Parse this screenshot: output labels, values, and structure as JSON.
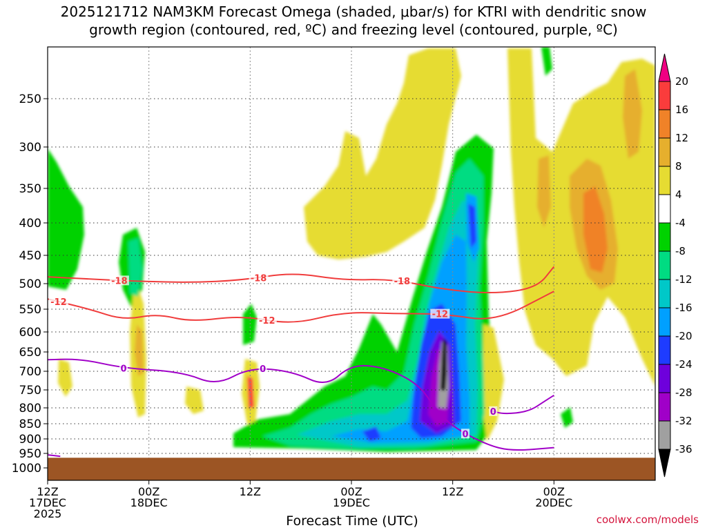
{
  "title_line1": "2025121712 NAM3KM Forecast Omega (shaded, μbar/s) for KTRI with dendritic snow",
  "title_line2": "growth region (contoured, red, ºC) and freezing level (contoured, purple, ºC)",
  "credit": "coolwx.com/models",
  "chart_data": {
    "type": "heatmap",
    "title": "2025121712 NAM3KM Forecast Omega (shaded, μbar/s) for KTRI with dendritic snow growth region (contoured, red, ºC) and freezing level (contoured, purple, ºC)",
    "xlabel": "Forecast Time (UTC)",
    "ylabel": "",
    "x_range_hours": [
      0,
      72
    ],
    "y_range_hpa": [
      1050,
      200
    ],
    "x_ticks": [
      {
        "hour": 0,
        "lines": [
          "12Z",
          "17DEC",
          "2025"
        ]
      },
      {
        "hour": 12,
        "lines": [
          "00Z",
          "18DEC"
        ]
      },
      {
        "hour": 24,
        "lines": [
          "12Z"
        ]
      },
      {
        "hour": 36,
        "lines": [
          "00Z",
          "19DEC"
        ]
      },
      {
        "hour": 48,
        "lines": [
          "12Z"
        ]
      },
      {
        "hour": 60,
        "lines": [
          "00Z",
          "20DEC"
        ]
      }
    ],
    "y_ticks": [
      "250",
      "300",
      "350",
      "400",
      "450",
      "500",
      "550",
      "600",
      "650",
      "700",
      "750",
      "800",
      "850",
      "900",
      "950",
      "1000"
    ],
    "colorbar": {
      "labels": [
        "20",
        "16",
        "12",
        "8",
        "4",
        "-4",
        "-8",
        "-12",
        "-16",
        "-20",
        "-24",
        "-28",
        "-32",
        "-36"
      ],
      "levels": [
        -40,
        -36,
        -32,
        -28,
        -24,
        -20,
        -16,
        -12,
        -8,
        -4,
        4,
        8,
        12,
        16,
        20,
        24
      ],
      "colors": [
        "#000000",
        "#a0a0a0",
        "#a000c8",
        "#6e00dc",
        "#1e3cff",
        "#00a0ff",
        "#00c8c8",
        "#00dc82",
        "#00d200",
        "#ffffff",
        "#e6dc32",
        "#e6af2d",
        "#f08228",
        "#fa3c3c",
        "#f00082"
      ]
    },
    "ground": {
      "color": "#9c5524",
      "top_hpa": 965
    },
    "contours": [
      {
        "name": "dgz-top",
        "label": "-18",
        "color": "#f03c3c",
        "points": [
          [
            0,
            488
          ],
          [
            5,
            492
          ],
          [
            11,
            496
          ],
          [
            17,
            498
          ],
          [
            23,
            494
          ],
          [
            29,
            480
          ],
          [
            35,
            494
          ],
          [
            41,
            492
          ],
          [
            47,
            512
          ],
          [
            53,
            520
          ],
          [
            58,
            508
          ],
          [
            60,
            470
          ]
        ],
        "label_hours": [
          8.5,
          25,
          42
        ]
      },
      {
        "name": "dgz-bottom",
        "label": "-12",
        "color": "#f03c3c",
        "points": [
          [
            0,
            530
          ],
          [
            5,
            550
          ],
          [
            9,
            574
          ],
          [
            13,
            560
          ],
          [
            17,
            578
          ],
          [
            23,
            564
          ],
          [
            29,
            584
          ],
          [
            35,
            556
          ],
          [
            41,
            560
          ],
          [
            47,
            560
          ],
          [
            53,
            578
          ],
          [
            60,
            515
          ]
        ],
        "label_hours": [
          1.3,
          26,
          46.5
        ]
      },
      {
        "name": "freezing-level-main",
        "label": "0",
        "color": "#a000c8",
        "points": [
          [
            0,
            670
          ],
          [
            4,
            668
          ],
          [
            9,
            692
          ],
          [
            16,
            702
          ],
          [
            20,
            738
          ],
          [
            24,
            690
          ],
          [
            29,
            700
          ],
          [
            33,
            742
          ],
          [
            36,
            682
          ],
          [
            40,
            690
          ],
          [
            44,
            735
          ],
          [
            46,
            805
          ],
          [
            48,
            860
          ],
          [
            52,
            920
          ],
          [
            55,
            942
          ],
          [
            60,
            930
          ]
        ],
        "label_hours": [
          9,
          25.5,
          49.5
        ]
      },
      {
        "name": "freezing-level-surface",
        "label": "",
        "color": "#a000c8",
        "points": [
          [
            0,
            955
          ],
          [
            1.5,
            960
          ]
        ],
        "label_hours": []
      },
      {
        "name": "freezing-level-right",
        "label": "0",
        "color": "#a000c8",
        "points": [
          [
            52.5,
            808
          ],
          [
            54,
            820
          ],
          [
            57,
            812
          ],
          [
            59,
            780
          ],
          [
            60,
            765
          ]
        ],
        "label_hours": [
          52.8
        ]
      }
    ]
  }
}
